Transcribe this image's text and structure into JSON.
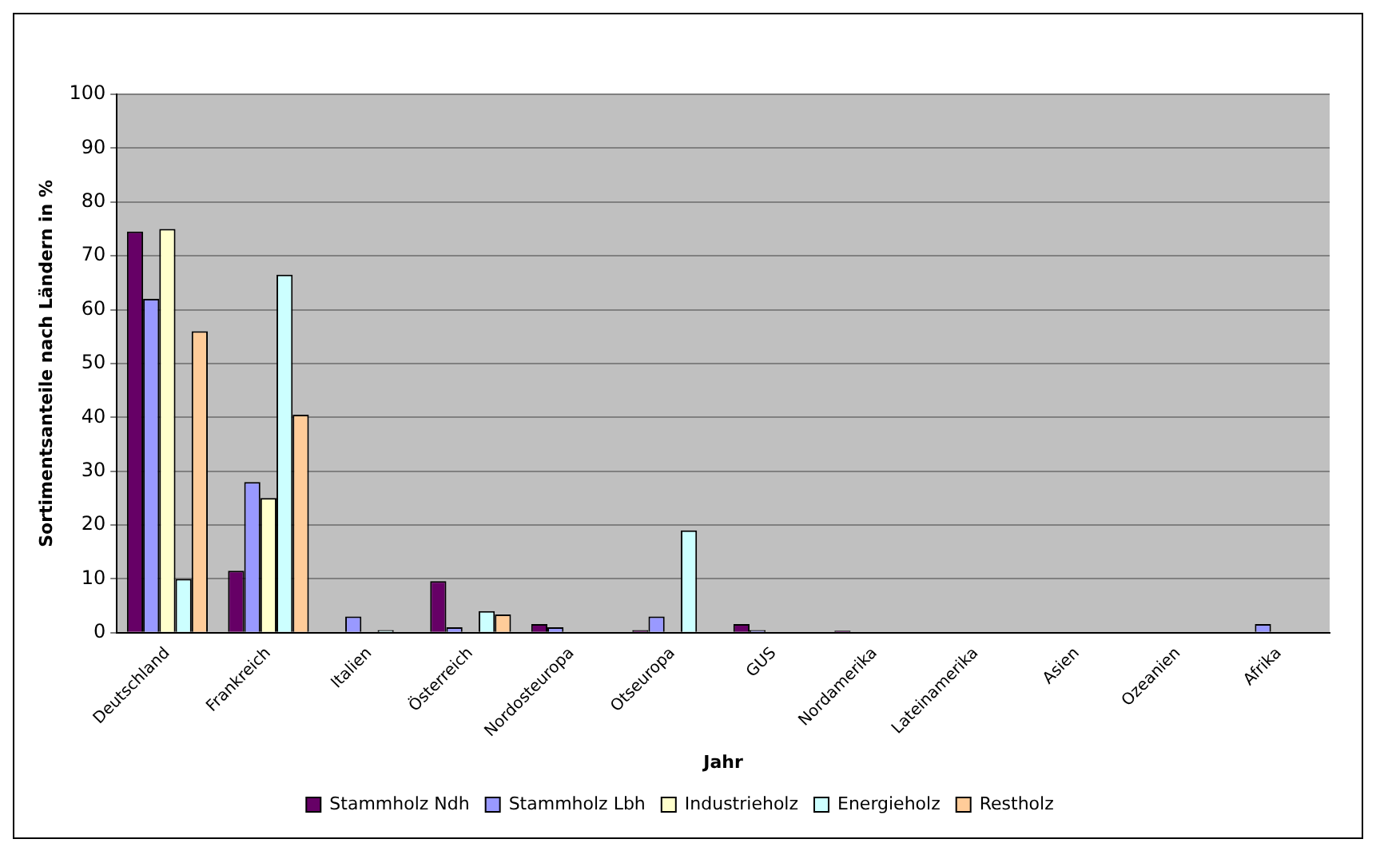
{
  "chart_data": {
    "type": "bar",
    "ylabel": "Sortimentsanteile nach Ländern in %",
    "xlabel": "Jahr",
    "categories": [
      "Deutschland",
      "Frankreich",
      "Italien",
      "Österreich",
      "Nordosteuropa",
      "Otseuropa",
      "GUS",
      "Nordamerika",
      "Lateinamerika",
      "Asien",
      "Ozeanien",
      "Afrika"
    ],
    "series": [
      {
        "name": "Stammholz Ndh",
        "color": "#660066",
        "values": [
          74.5,
          11.5,
          0,
          9.6,
          1.6,
          0.5,
          1.6,
          0.4,
          0,
          0,
          0,
          0
        ]
      },
      {
        "name": "Stammholz Lbh",
        "color": "#9999ff",
        "values": [
          62,
          28,
          3,
          1,
          1,
          3,
          0.5,
          0,
          0,
          0,
          0,
          1.6
        ]
      },
      {
        "name": "Industrieholz",
        "color": "#ffffcc",
        "values": [
          75,
          25,
          0,
          0,
          0,
          0,
          0,
          0,
          0,
          0,
          0,
          0
        ]
      },
      {
        "name": "Energieholz",
        "color": "#ccffff",
        "values": [
          10,
          66.5,
          0.5,
          4,
          0,
          19,
          0,
          0,
          0,
          0,
          0,
          0
        ]
      },
      {
        "name": "Restholz",
        "color": "#ffcc99",
        "values": [
          56,
          40.5,
          0,
          3.4,
          0,
          0,
          0,
          0,
          0,
          0,
          0,
          0
        ]
      }
    ],
    "ylim": [
      0,
      100
    ],
    "yticks": [
      0,
      10,
      20,
      30,
      40,
      50,
      60,
      70,
      80,
      90,
      100
    ],
    "grid": "y",
    "legend": "bottom"
  }
}
